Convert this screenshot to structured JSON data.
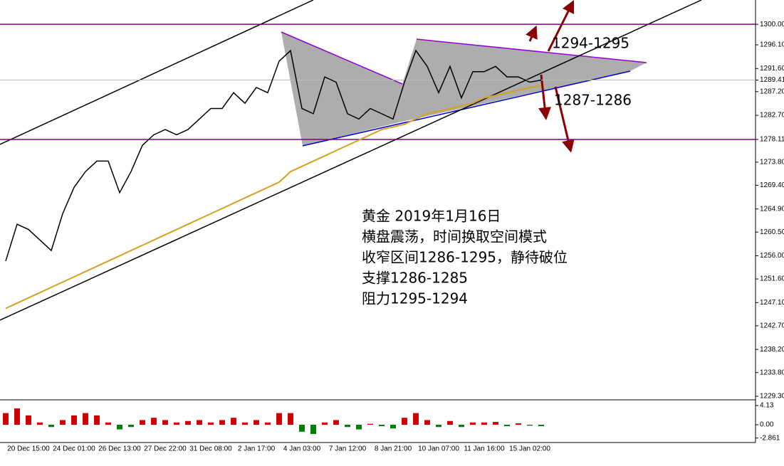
{
  "chart_data": [
    {
      "type": "line",
      "color": "#000000",
      "ma_color": "#d4a020",
      "categories": [
        null,
        null,
        "20 Dec 15:00",
        null,
        null,
        null,
        "24 Dec 01:00",
        null,
        null,
        null,
        "26 Dec 13:00",
        null,
        null,
        null,
        "27 Dec 22:00",
        null,
        null,
        null,
        "31 Dec 08:00",
        null,
        null,
        null,
        "2 Jan 17:00",
        null,
        null,
        null,
        "4 Jan 03:00",
        null,
        null,
        null,
        "7 Jan 12:00",
        null,
        null,
        null,
        "8 Jan 21:00",
        null,
        null,
        null,
        "10 Jan 07:00",
        null,
        null,
        null,
        "11 Jan 16:00",
        null,
        null,
        null,
        "15 Jan 02:00",
        null
      ],
      "values": [
        1255,
        1262,
        1261,
        1259,
        1257,
        1264,
        1269,
        1272,
        1274,
        1274,
        1268,
        1272,
        1277,
        1279,
        1280,
        1279,
        1280,
        1282,
        1284,
        1284,
        1287,
        1285,
        1288,
        1287,
        1293,
        1295,
        1284,
        1283,
        1290,
        1289,
        1283,
        1282,
        1284,
        1283,
        1282,
        1289,
        1295,
        1292,
        1287,
        1292,
        1286,
        1291,
        1291,
        1292,
        1290,
        1290,
        1289,
        1289.41
      ],
      "ma_values": [
        1246,
        1247,
        1248,
        1249,
        1250,
        1251,
        1252,
        1253,
        1254,
        1255,
        1256,
        1257,
        1258,
        1259,
        1260,
        1261,
        1262,
        1263,
        1264,
        1265,
        1266,
        1267,
        1268,
        1269,
        1270,
        1272,
        1273,
        1274,
        1275,
        1276,
        1277,
        1278,
        1279,
        1280,
        1280.5,
        1281,
        1282,
        1283,
        1283.5,
        1284,
        1284.5,
        1285,
        1286,
        1286.5,
        1287,
        1287.5,
        1288,
        1288.3
      ],
      "ylim": [
        1228.62,
        1304.62
      ],
      "yticks": [
        {
          "value": 1300,
          "label": "1300.00"
        },
        {
          "value": 1296.1,
          "label": "1296.10"
        },
        {
          "value": 1291.6,
          "label": "1291.60"
        },
        1289.41,
        {
          "value": 1287.2,
          "label": "1287.20"
        },
        {
          "value": 1282.7,
          "label": "1282.70"
        },
        1278.11,
        {
          "value": 1273.8,
          "label": "1273.80"
        },
        {
          "value": 1269.4,
          "label": "1269.40"
        },
        {
          "value": 1264.9,
          "label": "1264.90"
        },
        {
          "value": 1260.5,
          "label": "1260.50"
        },
        {
          "value": 1256,
          "label": "1256.00"
        },
        {
          "value": 1251.6,
          "label": "1251.60"
        },
        {
          "value": 1247.1,
          "label": "1247.10"
        },
        {
          "value": 1242.7,
          "label": "1242.70"
        },
        {
          "value": 1238.2,
          "label": "1238.20"
        },
        {
          "value": 1233.8,
          "label": "1233.80"
        },
        {
          "value": 1229.3,
          "label": "1229.30"
        }
      ],
      "hlines": [
        1300,
        1278.11
      ],
      "hline_color": "#800080",
      "last_price": 1289.41,
      "annotations": [
        "黄金 2019年1月16日",
        "横盘震荡，时间换取空间模式",
        "收窄区间1286-1295，静待破位",
        "支撑1286-1285",
        "阻力1295-1294"
      ],
      "upper_label": "1294-1295",
      "lower_label": "1287-1286"
    },
    {
      "type": "bar",
      "pos_color": "#d00000",
      "neg_color": "#008000",
      "values": [
        2.5,
        3.5,
        2,
        0.5,
        -0.5,
        1,
        2,
        2.5,
        2,
        0.5,
        -1,
        -0.5,
        1,
        1.5,
        1,
        0.5,
        0.8,
        1,
        0.5,
        1,
        1.5,
        0.5,
        1,
        0.5,
        2.5,
        2.5,
        -1.5,
        -2,
        0.5,
        1,
        -0.5,
        -1,
        0.2,
        -0.3,
        -0.8,
        1.5,
        2.5,
        1,
        -0.5,
        0.8,
        -0.5,
        0.5,
        0.5,
        0.6,
        -0.3,
        0.3,
        -0.2,
        -0.3
      ],
      "ylim": [
        -3.82,
        5.35
      ],
      "yticks": [
        4.13,
        {
          "value": 0,
          "label": "0.00"
        },
        -2.861
      ]
    }
  ]
}
